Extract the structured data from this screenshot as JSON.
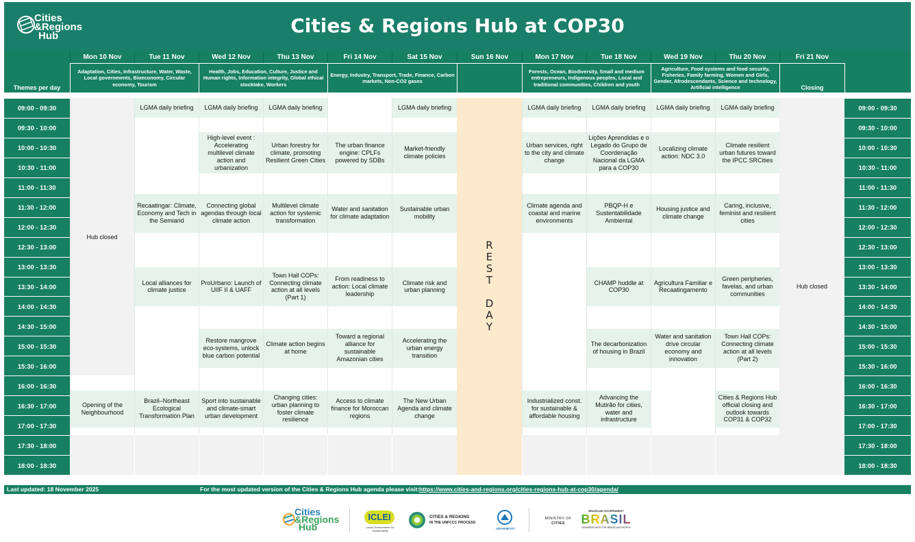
{
  "header": {
    "title": "Cities & Regions Hub at COP30",
    "logo_line1": "Cities",
    "logo_line2": "&Regions",
    "logo_line3": "Hub"
  },
  "days": [
    "Mon 10 Nov",
    "Tue 11 Nov",
    "Wed 12 Nov",
    "Thu 13 Nov",
    "Fri 14 Nov",
    "Sat 15 Nov",
    "Sun 16 Nov",
    "Mon 17 Nov",
    "Tue 18 Nov",
    "Wed 19 Nov",
    "Thu 20 Nov",
    "Fri 21 Nov"
  ],
  "themes_label": "Themes per day",
  "themes": {
    "t1": "Adaptation, Cities, Infrastructure, Water, Waste, Local governments, Bioeconomy, Circular economy, Tourism",
    "t2": "Health, Jobs, Education, Culture, Justice and Human rights, Information integrity, Global ethical stocktake, Workers",
    "t3": "Energy, Industry, Transport, Trade, Finance, Carbon markets, Non-CO2 gases",
    "t4": "Forests, Ocean, Biodiversity, Small and medium entrepreneurs, Indigenous peoples, Local and traditional communities, Children and youth",
    "t5": "Agriculture, Food systems and food security, Fisheries, Family farming, Women and Girls, Gender, Afrodescendants, Science and technology, Artificial intelligence",
    "t6": "Closing"
  },
  "times": [
    "09:00 - 09:30",
    "09:30 - 10:00",
    "10:00 - 10:30",
    "10:30 - 11:00",
    "11:00 - 11:30",
    "11:30 - 12:00",
    "12:00 - 12:30",
    "12:30 - 13:00",
    "13:00 - 13:30",
    "13:30 - 14:00",
    "14:00 - 14:30",
    "14:30 - 15:00",
    "15:00 - 15:30",
    "15:30 - 16:00",
    "16:00 - 16:30",
    "16:30 - 17:00",
    "17:00 - 17:30",
    "17:30 - 18:00",
    "18:00 - 18:30"
  ],
  "special": {
    "hub_closed": "Hub closed",
    "rest_day": "R\nE\nS\nT\n\nD\nA\nY"
  },
  "events": {
    "tue_brief": "LGMA daily briefing",
    "wed_brief": "LGMA daily briefing",
    "thu_brief": "LGMA daily briefing",
    "sat_brief": "LGMA daily briefing",
    "mon17_brief": "LGMA daily briefing",
    "tue18_brief": "LGMA daily briefing",
    "wed19_brief": "LGMA daily briefing",
    "thu20_brief": "LGMA daily briefing",
    "wed_s1": "High-level event : Accelerating multilevel climate action and urbanization",
    "thu_s1": "Urban forestry for climate, promoting Resilient Green Cities",
    "fri_s1": "The urban finance engine: CPLFs powered by SDBs",
    "sat_s1": "Market-friendly climate policies",
    "mon17_s1": "Urban services, right to the city and climate change",
    "tue18_s1": "Lições Aprendidas e o Legado do Grupo de Coordenação Nacional da LGMA para a COP30",
    "wed19_s1": "Localizing climate action: NDC 3.0",
    "thu20_s1": "Climate resilient urban futures toward the IPCC SRCities",
    "tue_s2": "Recaatingar: Climate, Economy and Tech in the Semiarid",
    "wed_s2": "Connecting global agendas through local climate action",
    "thu_s2": "Multilevel climate action for systemic transformation",
    "fri_s2": "Water and sanitation for climate adaptation",
    "sat_s2": "Sustainable urban mobility",
    "mon17_s2": "Climate agenda and coastal and marine environments",
    "tue18_s2": "PBQP-H e Sustentabilidade Ambiental",
    "wed19_s2": "Housing justice and climate change",
    "thu20_s2": "Caring, inclusive, feminist and resilient cities",
    "tue_s3": "Local alliances for climate justice",
    "wed_s3": "ProUrbano: Launch of UIIF II & UAFF",
    "thu_s3": "Town Hall COPs: Connecting climate action at all levels (Part 1)",
    "fri_s3": "From readiness to action: Local climate leadership",
    "sat_s3": "Climate risk and urban planning",
    "tue18_s3": "CHAMP huddle at COP30",
    "wed19_s3": "Agricultura Familiar e Recaatingamento",
    "thu20_s3": "Green peripheries, favelas, and urban communities",
    "wed_s4": "Restore mangrove eco-systems, unlock blue carbon potential",
    "thu_s4": "Climate action begins at home",
    "fri_s4": "Toward a regional alliance for sustainable Amazonian cities",
    "sat_s4": "Accelerating the urban energy transition",
    "tue18_s4": "The decarbonization of housing in Brazil",
    "wed19_s4": "Water and sanitation drive circular economy and innovation",
    "thu20_s4": "Town Hall COPs: Connecting climate action at all levels (Part 2)",
    "mon_s5": "Opening of the Neighbourhood",
    "tue_s5": "Brazil–Northeast Ecological Transformation Plan",
    "wed_s5": "Sport into sustainable and climate-smart urban development",
    "thu_s5": "Changing cities: urban planning to foster climate resilience",
    "fri_s5": "Access to climate finance for Moroccan regions",
    "sat_s5": "The  New Urban Agenda and climate change",
    "mon17_s5": "Industrialized const. for sustainable & affordable housing",
    "tue18_s5": "Advancing the Mutirão for cities, water and infrastructure",
    "thu20_s5": "Cities & Regions Hub official closing and outlook towards COP31 & COP32"
  },
  "footer": {
    "updated": "Last updated: 18 November 2025",
    "visit": "For the most updated version of the Cities & Regions Hub agenda please visit:",
    "url": "https://www.cities-and-regions.org/cities-regions-hub-at-cop30/agenda/"
  },
  "partners": {
    "hub": "Cities & Regions Hub",
    "hub_l1": "Cities",
    "hub_l2": "&Regions",
    "hub_l3": "Hub",
    "iclei": "ICLEI",
    "iclei_sub": "Local Governments for Sustainability",
    "unfccc_l1": "CITIES & REGIONS",
    "unfccc_l2": "IN THE UNFCCC PROCESS",
    "unhabitat": "UN-HABITAT",
    "ministry_l1": "MINISTRY OF",
    "ministry_l2": "CITIES",
    "brazil_top": "BRAZILIAN GOVERNMENT",
    "brazil": "BRASIL",
    "brazil_sub": "STANDING WITH THE BRAZILIAN PEOPLE"
  },
  "colors": {
    "header": "#1a7f6a",
    "grid_green": "#168060",
    "event_bg": "#e6f3ec",
    "closed_bg": "#f2f2f2",
    "rest_bg": "#fde9cc"
  }
}
